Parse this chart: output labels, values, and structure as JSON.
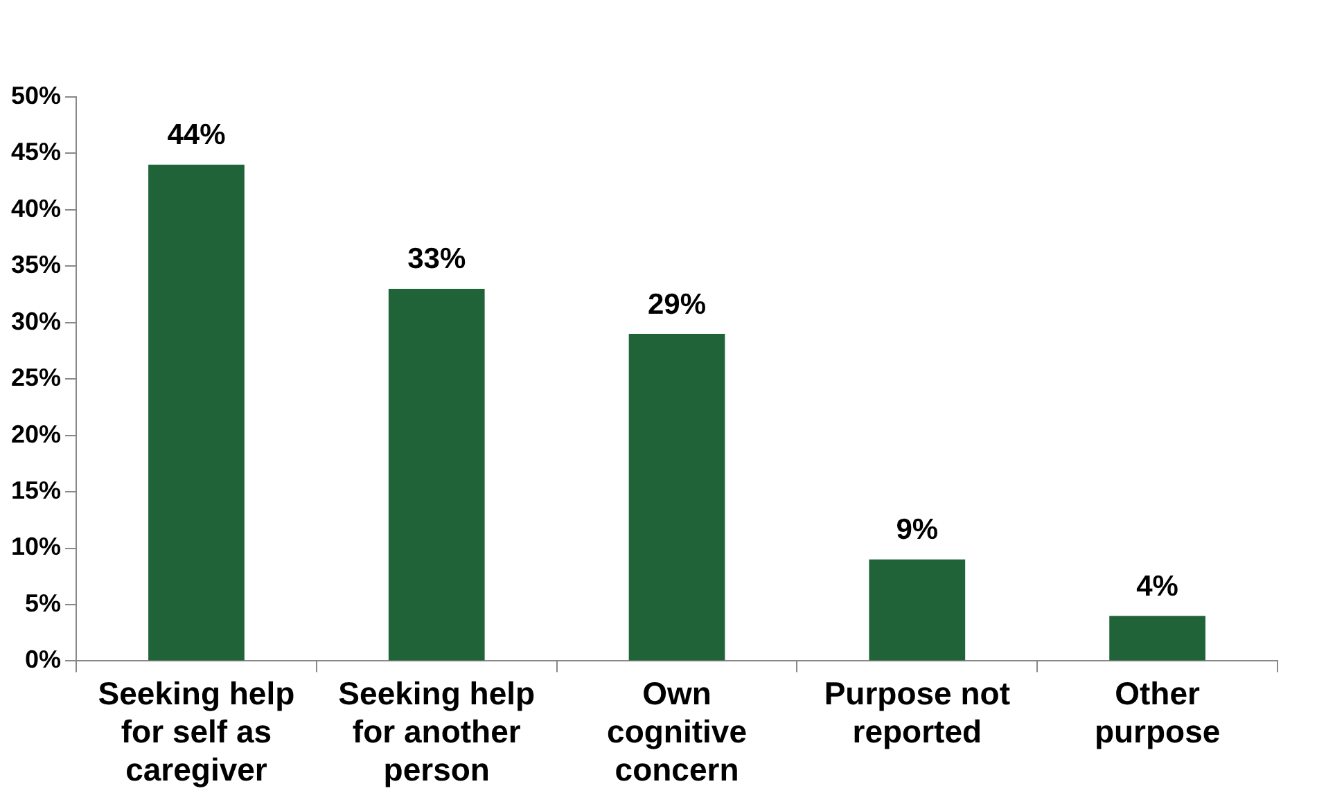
{
  "chart_data": {
    "type": "bar",
    "categories": [
      "Seeking help for self as caregiver",
      "Seeking help for another person",
      "Own cognitive concern",
      "Purpose not reported",
      "Other purpose"
    ],
    "values": [
      44,
      33,
      29,
      9,
      4
    ],
    "value_labels": [
      "44%",
      "33%",
      "29%",
      "9%",
      "4%"
    ],
    "color": "#206338",
    "ylim": [
      0,
      50
    ],
    "yticks": [
      {
        "value": 0,
        "label": "0%"
      },
      {
        "value": 5,
        "label": "5%"
      },
      {
        "value": 10,
        "label": "10%"
      },
      {
        "value": 15,
        "label": "15%"
      },
      {
        "value": 20,
        "label": "20%"
      },
      {
        "value": 25,
        "label": "25%"
      },
      {
        "value": 30,
        "label": "30%"
      },
      {
        "value": 35,
        "label": "35%"
      },
      {
        "value": 40,
        "label": "40%"
      },
      {
        "value": 45,
        "label": "45%"
      },
      {
        "value": 50,
        "label": "50%"
      }
    ],
    "grid": false,
    "legend": false
  }
}
